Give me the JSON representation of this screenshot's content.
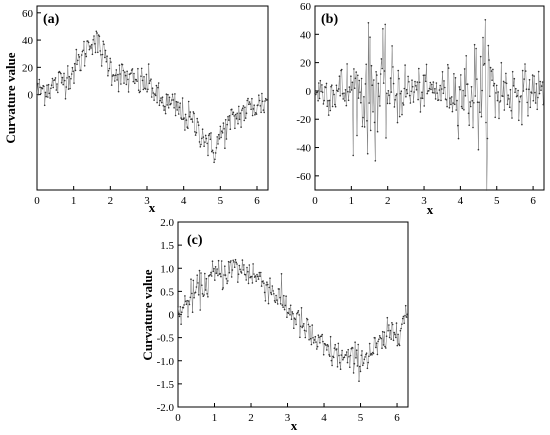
{
  "chart_data": [
    {
      "type": "line",
      "panel_label": "(a)",
      "xlabel": "x",
      "ylabel": "Curvature value",
      "xlim": [
        0,
        6.3
      ],
      "ylim": [
        -70,
        65
      ],
      "xticks": [
        0,
        1,
        2,
        3,
        4,
        5,
        6
      ],
      "yticks": [
        0,
        20,
        40,
        60
      ],
      "ytick_labels": [
        "0",
        "20",
        "40",
        "60"
      ],
      "series": [
        {
          "x": [
            0,
            0.25,
            0.5,
            0.75,
            1.0,
            1.25,
            1.5,
            1.75,
            2.0,
            2.25,
            2.5,
            2.75,
            3.0,
            3.14,
            3.3,
            3.55,
            3.8,
            4.05,
            4.3,
            4.55,
            4.8,
            5.05,
            5.3,
            5.55,
            5.8,
            6.05,
            6.28
          ],
          "y": [
            2,
            5,
            7,
            12,
            18,
            28,
            42,
            32,
            20,
            14,
            11,
            9,
            8,
            6,
            -4,
            -7,
            -10,
            -16,
            -22,
            -30,
            -42,
            -28,
            -20,
            -14,
            -10,
            -7,
            -5
          ],
          "noise": 6
        }
      ]
    },
    {
      "type": "line",
      "panel_label": "(b)",
      "xlabel": "x",
      "ylabel": "",
      "xlim": [
        0,
        6.3
      ],
      "ylim": [
        -70,
        60
      ],
      "xticks": [
        0,
        1,
        2,
        3,
        4,
        5,
        6
      ],
      "yticks": [
        -60,
        -40,
        -20,
        0,
        20,
        40,
        60
      ],
      "ytick_labels": [
        "-60",
        "-40",
        "-20",
        "0",
        "20",
        "40",
        "60"
      ],
      "series": [
        {
          "x": [
            0,
            0.5,
            1.0,
            1.5,
            1.8,
            2.0,
            2.5,
            3.0,
            3.5,
            4.0,
            4.5,
            4.8,
            5.0,
            5.5,
            6.0,
            6.28
          ],
          "y": [
            0,
            0,
            0,
            0,
            0,
            0,
            0,
            0,
            0,
            0,
            0,
            0,
            0,
            0,
            0,
            0
          ],
          "amplitude": [
            12,
            15,
            22,
            40,
            38,
            28,
            18,
            12,
            14,
            22,
            38,
            40,
            30,
            18,
            14,
            12
          ]
        }
      ]
    },
    {
      "type": "line",
      "panel_label": "(c)",
      "xlabel": "x",
      "ylabel": "Curvature value",
      "xlim": [
        0,
        6.3
      ],
      "ylim": [
        -2.0,
        2.0
      ],
      "xticks": [
        0,
        1,
        2,
        3,
        4,
        5,
        6
      ],
      "yticks": [
        -2.0,
        -1.5,
        -1.0,
        -0.5,
        0,
        0.5,
        1.0,
        1.5,
        2.0
      ],
      "ytick_labels": [
        "-2.0",
        "-1.5",
        "-1.0",
        "-0.5",
        "0",
        "0.5",
        "1.0",
        "1.5",
        "2.0"
      ],
      "series": [
        {
          "x": [
            0,
            0.5,
            1.0,
            1.57,
            2.0,
            2.5,
            3.0,
            3.14,
            3.5,
            4.0,
            4.71,
            5.0,
            5.5,
            6.0,
            6.28
          ],
          "y": [
            0.0,
            0.48,
            0.84,
            1.0,
            0.91,
            0.6,
            0.14,
            0.0,
            -0.35,
            -0.76,
            -1.0,
            -0.96,
            -0.71,
            -0.28,
            0.0
          ],
          "noise": 0.18
        }
      ]
    }
  ]
}
